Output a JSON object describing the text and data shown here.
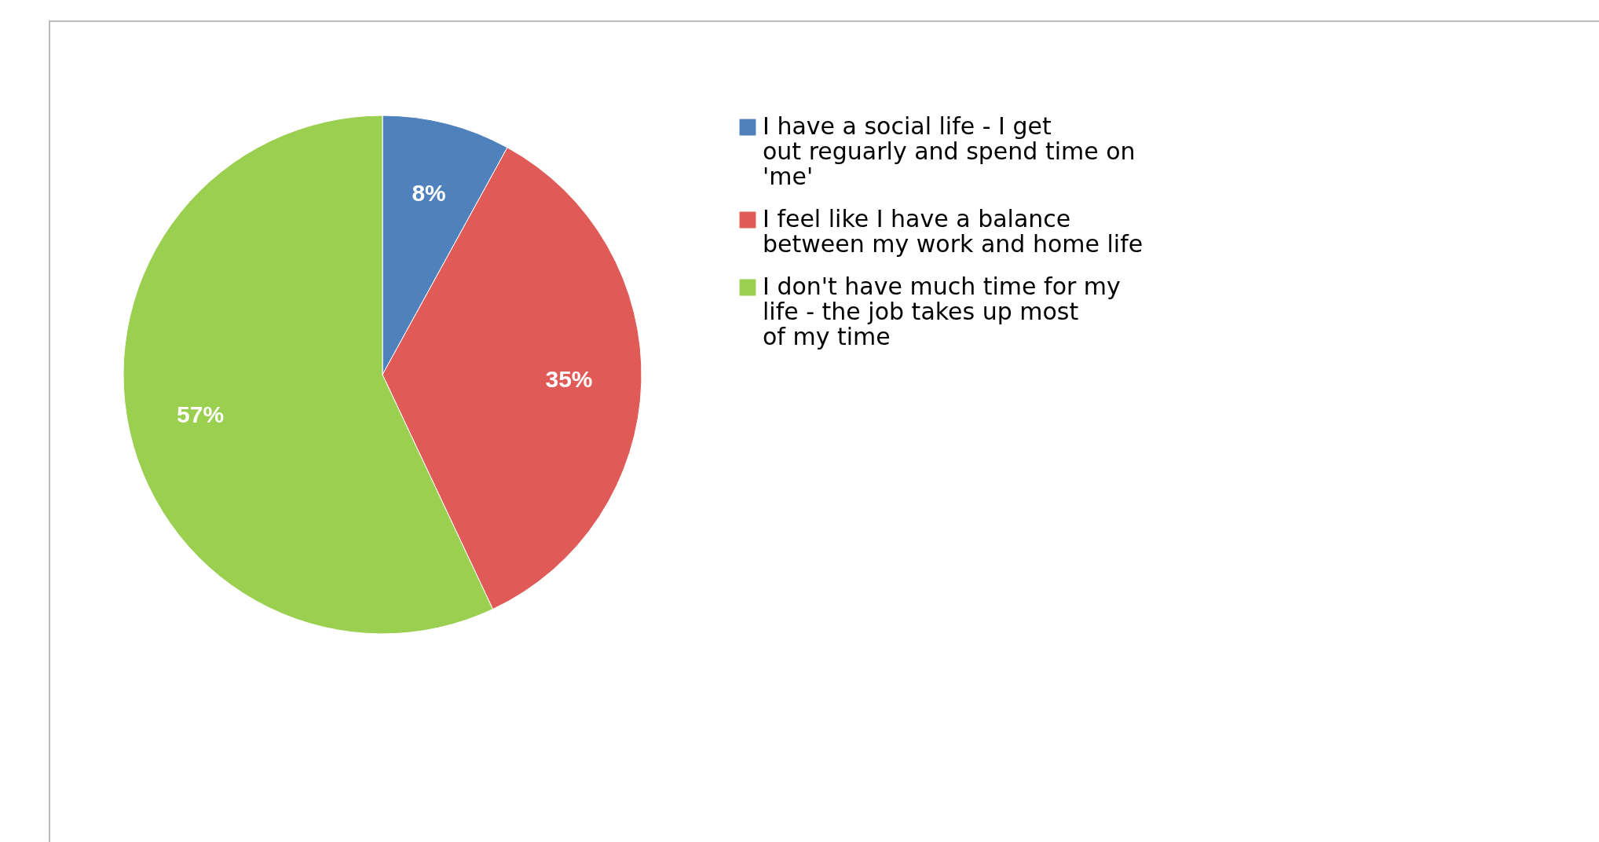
{
  "chart_data": {
    "type": "pie",
    "categories": [
      "I have a social life - I get out reguarly and spend time on 'me'",
      "I feel like I have a balance between my work and home life",
      "I don't have much time for my life - the job takes up most of my time"
    ],
    "values": [
      8,
      35,
      57
    ],
    "colors": [
      "#4f81bd",
      "#e05a57",
      "#9bcf50"
    ],
    "value_labels": [
      "8%",
      "35%",
      "57%"
    ],
    "legend": "right"
  }
}
